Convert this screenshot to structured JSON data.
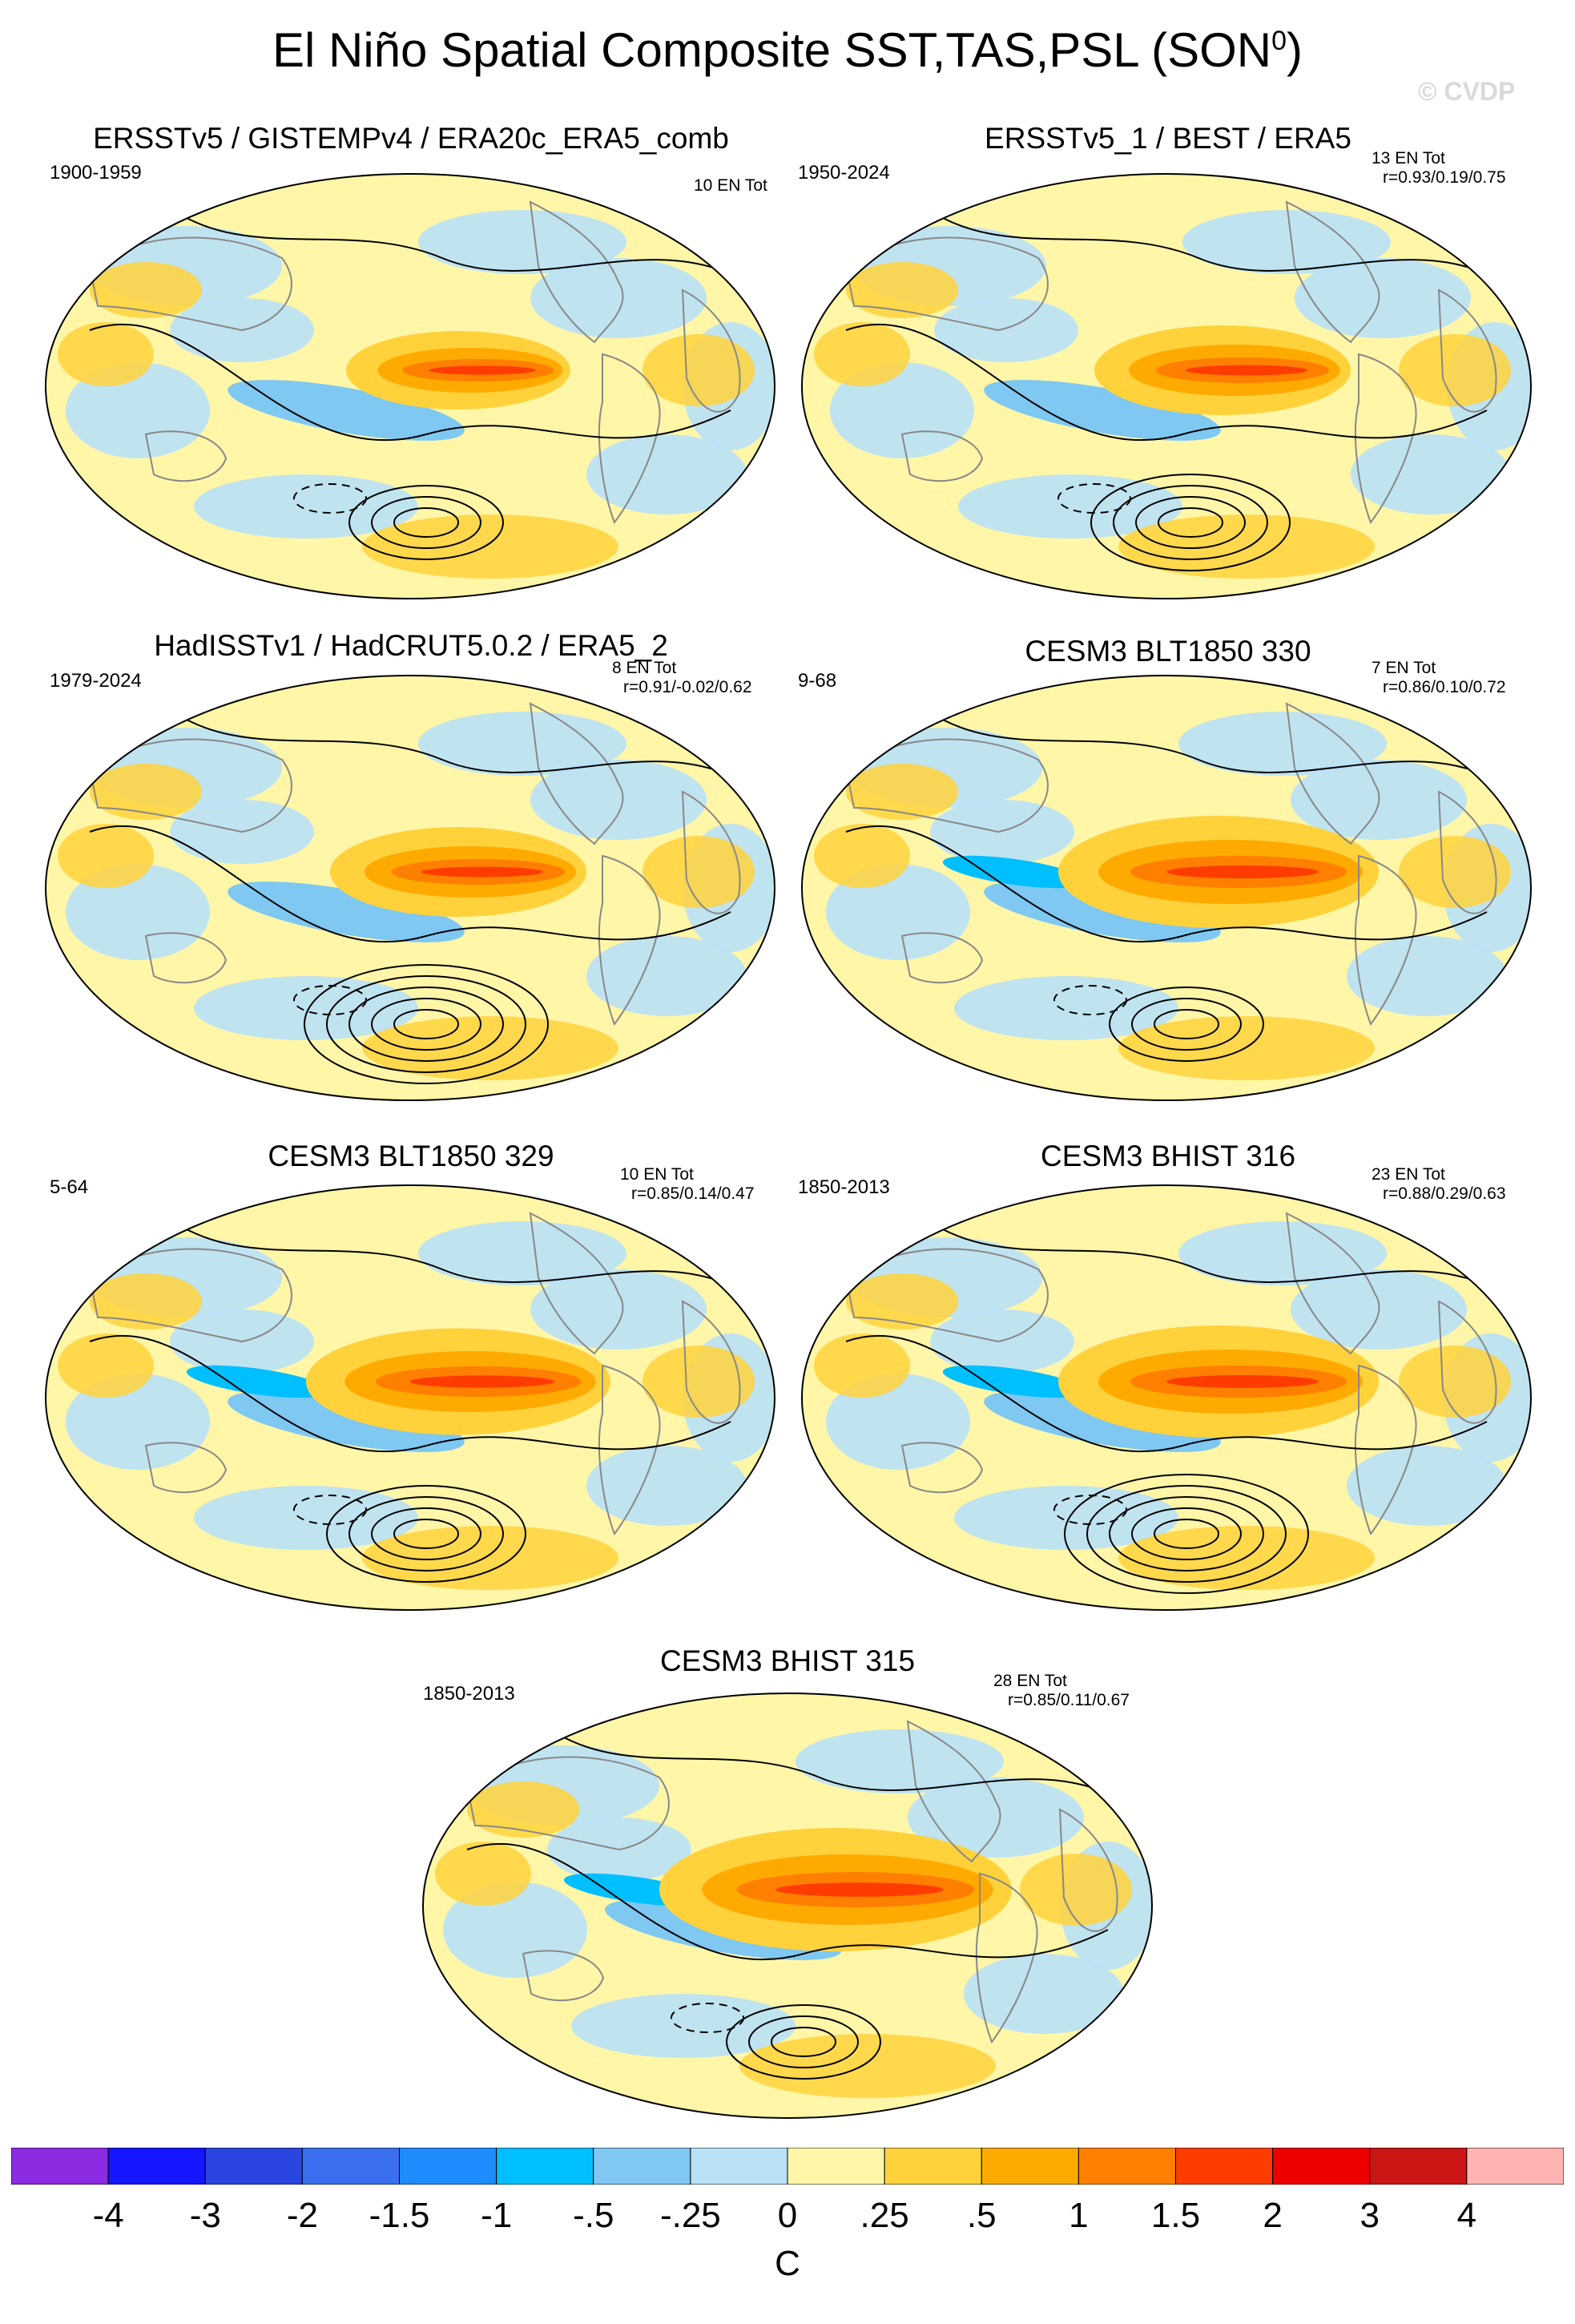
{
  "title_main": "El Niño Spatial Composite SST,TAS,PSL (SON",
  "title_sup": "0",
  "title_close": ")",
  "watermark": "© CVDP",
  "panels": [
    {
      "title": "ERSSTv5 / GISTEMPv4 / ERA20c_ERA5_comb",
      "period": "1900-1959",
      "count": "10 EN Tot",
      "corr": ""
    },
    {
      "title": "ERSSTv5_1 / BEST / ERA5",
      "period": "1950-2024",
      "count": "13 EN Tot",
      "corr": "r=0.93/0.19/0.75"
    },
    {
      "title": "HadISSTv1 / HadCRUT5.0.2 / ERA5_2",
      "period": "1979-2024",
      "count": "8 EN Tot",
      "corr": "r=0.91/-0.02/0.62"
    },
    {
      "title": "CESM3 BLT1850 330",
      "period": "9-68",
      "count": "7 EN Tot",
      "corr": "r=0.86/0.10/0.72"
    },
    {
      "title": "CESM3 BLT1850 329",
      "period": "5-64",
      "count": "10 EN Tot",
      "corr": "r=0.85/0.14/0.47"
    },
    {
      "title": "CESM3 BHIST 316",
      "period": "1850-2013",
      "count": "23 EN Tot",
      "corr": "r=0.88/0.29/0.63"
    },
    {
      "title": "CESM3 BHIST 315",
      "period": "1850-2013",
      "count": "28 EN Tot",
      "corr": "r=0.85/0.11/0.67"
    }
  ],
  "chart_data": {
    "type": "heatmap",
    "title": "El Niño Spatial Composite SST,TAS,PSL (SON0)",
    "projection": "Robinson global maps, shaded SST/TAS with PSL contours",
    "colorbar": {
      "unit": "C",
      "colors": [
        "#8b2be2",
        "#1515ff",
        "#2a45e0",
        "#3a6ff0",
        "#1e8cff",
        "#00bfff",
        "#7ec8f2",
        "#b9e1f7",
        "#fff6a8",
        "#ffd23c",
        "#ffaa00",
        "#ff7f00",
        "#ff3c00",
        "#ee0000",
        "#cc1515",
        "#ffb3b3"
      ],
      "tick_labels": [
        "-4",
        "-3",
        "-2",
        "-1.5",
        "-1",
        "-.5",
        "-.25",
        "0",
        ".25",
        ".5",
        "1",
        "1.5",
        "2",
        "3",
        "4"
      ]
    }
  }
}
